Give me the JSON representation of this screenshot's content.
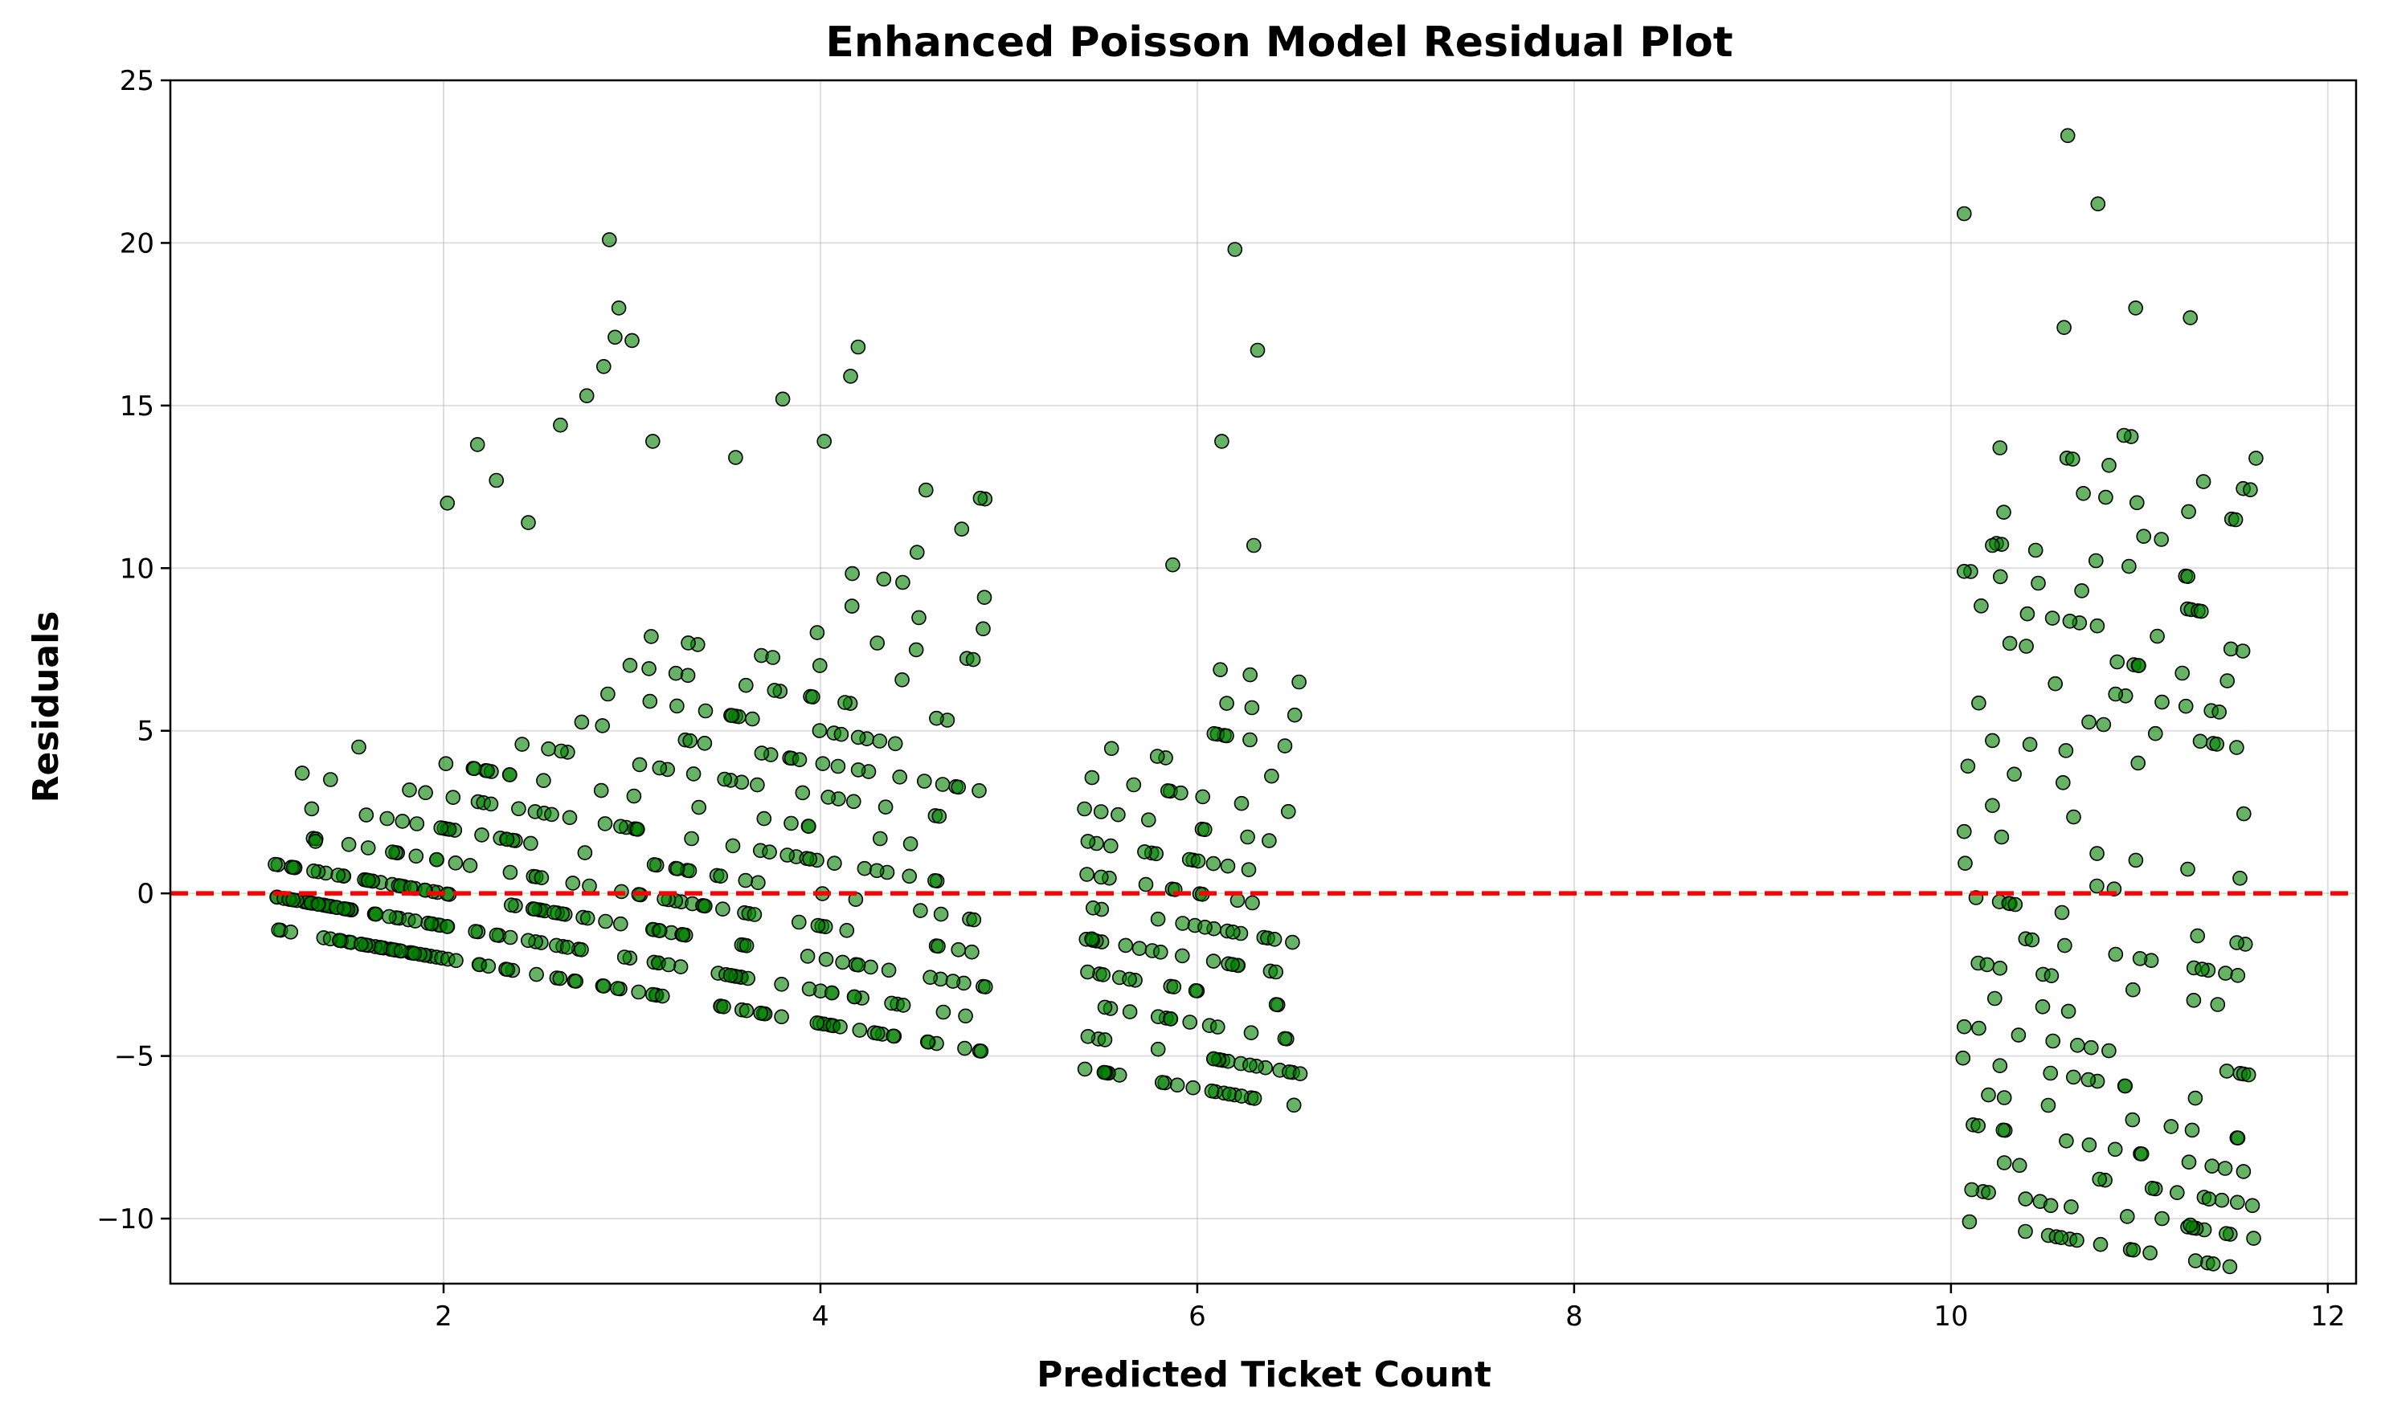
{
  "chart_data": {
    "type": "scatter",
    "title": "Enhanced Poisson Model Residual Plot",
    "xlabel": "Predicted Ticket Count",
    "ylabel": "Residuals",
    "xlim": [
      0.55,
      12.15
    ],
    "ylim": [
      -12,
      25
    ],
    "xticks": [
      2,
      4,
      6,
      8,
      10,
      12
    ],
    "yticks": [
      -10,
      -5,
      0,
      5,
      10,
      15,
      20,
      25
    ],
    "xtick_labels": [
      "2",
      "4",
      "6",
      "8",
      "10",
      "12"
    ],
    "ytick_labels": [
      "−10",
      "−5",
      "0",
      "5",
      "10",
      "15",
      "20",
      "25"
    ],
    "grid": true,
    "point_color": "#008000",
    "point_opacity": 0.6,
    "point_edge_color": "#000000",
    "reference_line": {
      "y": 0,
      "color": "#ff0000",
      "style": "dashed"
    },
    "clusters": [
      {
        "x_min": 1.1,
        "x_max": 3.4,
        "residual_top_at_start": 1,
        "residual_top_at_end": 9,
        "integer_count_rows": 22
      },
      {
        "x_min": 3.45,
        "x_max": 4.9,
        "residual_top_at_start": 7,
        "residual_top_at_end": 13,
        "integer_count_rows": 18
      },
      {
        "x_min": 5.4,
        "x_max": 6.55,
        "residual_top_at_start": 4,
        "residual_top_at_end": 9,
        "integer_count_rows": 14
      },
      {
        "x_min": 10.05,
        "x_max": 11.62,
        "residual_top_at_start": 13,
        "residual_top_at_end": 15,
        "integer_count_rows": 24
      }
    ],
    "outliers": [
      {
        "x": 1.25,
        "y": 3.7
      },
      {
        "x": 1.3,
        "y": 2.6
      },
      {
        "x": 1.32,
        "y": 1.6
      },
      {
        "x": 1.4,
        "y": 3.5
      },
      {
        "x": 1.55,
        "y": 4.5
      },
      {
        "x": 1.6,
        "y": 0.4
      },
      {
        "x": 1.7,
        "y": 2.3
      },
      {
        "x": 2.02,
        "y": 12.0
      },
      {
        "x": 2.18,
        "y": 13.8
      },
      {
        "x": 2.28,
        "y": 12.7
      },
      {
        "x": 2.45,
        "y": 11.4
      },
      {
        "x": 2.62,
        "y": 14.4
      },
      {
        "x": 2.76,
        "y": 15.3
      },
      {
        "x": 2.85,
        "y": 16.2
      },
      {
        "x": 2.88,
        "y": 20.1
      },
      {
        "x": 2.93,
        "y": 18.0
      },
      {
        "x": 2.91,
        "y": 17.1
      },
      {
        "x": 3.0,
        "y": 17.0
      },
      {
        "x": 3.11,
        "y": 13.9
      },
      {
        "x": 3.55,
        "y": 13.4
      },
      {
        "x": 3.8,
        "y": 15.2
      },
      {
        "x": 4.02,
        "y": 13.9
      },
      {
        "x": 4.16,
        "y": 15.9
      },
      {
        "x": 4.2,
        "y": 16.8
      },
      {
        "x": 4.56,
        "y": 12.4
      },
      {
        "x": 4.75,
        "y": 11.2
      },
      {
        "x": 4.87,
        "y": 9.1
      },
      {
        "x": 5.42,
        "y": 1.6
      },
      {
        "x": 5.44,
        "y": -1.4
      },
      {
        "x": 5.42,
        "y": -4.4
      },
      {
        "x": 5.49,
        "y": 0.5
      },
      {
        "x": 5.5,
        "y": -2.5
      },
      {
        "x": 5.51,
        "y": -3.5
      },
      {
        "x": 5.51,
        "y": -4.5
      },
      {
        "x": 5.62,
        "y": -1.6
      },
      {
        "x": 5.87,
        "y": 10.1
      },
      {
        "x": 6.13,
        "y": 13.9
      },
      {
        "x": 6.2,
        "y": 19.8
      },
      {
        "x": 6.32,
        "y": 16.7
      },
      {
        "x": 6.3,
        "y": 10.7
      },
      {
        "x": 6.54,
        "y": 6.5
      },
      {
        "x": 10.07,
        "y": 20.9
      },
      {
        "x": 10.07,
        "y": 9.9
      },
      {
        "x": 10.07,
        "y": 1.9
      },
      {
        "x": 10.07,
        "y": -4.1
      },
      {
        "x": 10.22,
        "y": 10.7
      },
      {
        "x": 10.26,
        "y": 13.7
      },
      {
        "x": 10.22,
        "y": 4.7
      },
      {
        "x": 10.22,
        "y": 2.7
      },
      {
        "x": 10.26,
        "y": -2.3
      },
      {
        "x": 10.26,
        "y": -5.3
      },
      {
        "x": 10.62,
        "y": 23.3
      },
      {
        "x": 10.78,
        "y": 21.2
      },
      {
        "x": 10.6,
        "y": 17.4
      },
      {
        "x": 10.98,
        "y": 18.0
      },
      {
        "x": 11.27,
        "y": 17.7
      },
      {
        "x": 11.12,
        "y": -10.0
      },
      {
        "x": 11.27,
        "y": -10.2
      },
      {
        "x": 11.37,
        "y": -9.4
      },
      {
        "x": 11.52,
        "y": -9.5
      },
      {
        "x": 11.6,
        "y": -9.6
      },
      {
        "x": 10.53,
        "y": -9.6
      }
    ]
  }
}
